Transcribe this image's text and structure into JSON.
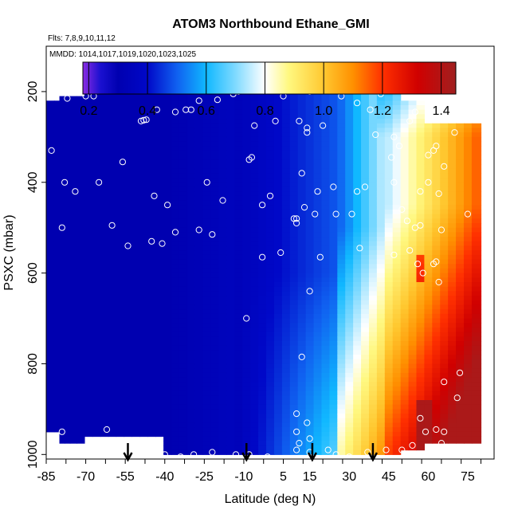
{
  "chart_data": {
    "type": "heatmap",
    "title": "ATOM3 Northbound Ethane_GMI",
    "flights_label": "Flts: 7,8,9,10,11,12",
    "dates_label": "MMDD: 1014,1017,1019,1020,1023,1025",
    "xlabel": "Latitude (deg N)",
    "ylabel": "PSXC (mbar)",
    "xlim": [
      -85,
      85
    ],
    "ylim": [
      1010,
      100
    ],
    "x_ticks": [
      -85,
      -70,
      -55,
      -40,
      -25,
      -10,
      5,
      15,
      30,
      45,
      60,
      75
    ],
    "x_tick_labels": [
      "-85",
      "-70",
      "-55",
      "-40",
      "-25",
      "-10",
      "5",
      "15",
      "30",
      "45",
      "60",
      "75"
    ],
    "y_ticks": [
      200,
      400,
      600,
      800,
      1000
    ],
    "y_tick_labels": [
      "200",
      "400",
      "600",
      "800",
      "1000"
    ],
    "colorbar": {
      "range": [
        0.18,
        1.45
      ],
      "ticks": [
        0.2,
        0.4,
        0.6,
        0.8,
        1.0,
        1.2,
        1.4
      ],
      "tick_labels": [
        "0.2",
        "0.4",
        "0.6",
        "0.8",
        "1.0",
        "1.2",
        "1.4"
      ],
      "stops": [
        {
          "v": 0.18,
          "color": "#8a2be2"
        },
        {
          "v": 0.24,
          "color": "#1a10d0"
        },
        {
          "v": 0.3,
          "color": "#0000b0"
        },
        {
          "v": 0.4,
          "color": "#0008c8"
        },
        {
          "v": 0.5,
          "color": "#1060f0"
        },
        {
          "v": 0.6,
          "color": "#10b8ff"
        },
        {
          "v": 0.7,
          "color": "#80daff"
        },
        {
          "v": 0.8,
          "color": "#ffffff"
        },
        {
          "v": 0.88,
          "color": "#fff880"
        },
        {
          "v": 1.0,
          "color": "#ffc830"
        },
        {
          "v": 1.1,
          "color": "#ff9000"
        },
        {
          "v": 1.2,
          "color": "#ff3000"
        },
        {
          "v": 1.32,
          "color": "#d00000"
        },
        {
          "v": 1.45,
          "color": "#a02020"
        }
      ]
    },
    "latitude_columns": [
      -83,
      -81,
      -79,
      -77,
      -75,
      -72,
      -69,
      -66,
      -63,
      -60,
      -57,
      -54,
      -51,
      -48,
      -45,
      -42,
      -39,
      -36,
      -33,
      -30,
      -27,
      -24,
      -21,
      -18,
      -15,
      -12,
      -9,
      -6,
      -3,
      0,
      3,
      6,
      9,
      12,
      15,
      18,
      21,
      24,
      27,
      30,
      33,
      36,
      39,
      42,
      45,
      48,
      51,
      54,
      57,
      60,
      63,
      66,
      69,
      72,
      75,
      78
    ],
    "column_ranges_mbar": [
      {
        "lat_min": -85,
        "lat_max": -83,
        "p_top": 330,
        "p_bottom": 330
      },
      {
        "lat_min": -83,
        "lat_max": -80,
        "p_top": 220,
        "p_bottom": 950
      },
      {
        "lat_min": -80,
        "lat_max": -70,
        "p_top": 210,
        "p_bottom": 975
      },
      {
        "lat_min": -70,
        "lat_max": -40,
        "p_top": 170,
        "p_bottom": 960
      },
      {
        "lat_min": -40,
        "lat_max": 50,
        "p_top": 170,
        "p_bottom": 1000
      },
      {
        "lat_min": 50,
        "lat_max": 58,
        "p_top": 220,
        "p_bottom": 990
      },
      {
        "lat_min": 58,
        "lat_max": 78,
        "p_top": 270,
        "p_bottom": 975
      }
    ],
    "arrows_latitude": [
      -54,
      -9,
      16,
      39
    ],
    "sample_points": [
      {
        "lat": -77,
        "p": 215
      },
      {
        "lat": -70,
        "p": 210
      },
      {
        "lat": -67,
        "p": 210
      },
      {
        "lat": -60,
        "p": 185
      },
      {
        "lat": -49,
        "p": 265
      },
      {
        "lat": -48,
        "p": 263
      },
      {
        "lat": -47,
        "p": 262
      },
      {
        "lat": -43,
        "p": 240
      },
      {
        "lat": -36,
        "p": 245
      },
      {
        "lat": -32,
        "p": 240
      },
      {
        "lat": -30,
        "p": 240
      },
      {
        "lat": -27,
        "p": 220
      },
      {
        "lat": -20,
        "p": 218
      },
      {
        "lat": -14,
        "p": 205
      },
      {
        "lat": -12,
        "p": 200
      },
      {
        "lat": -9,
        "p": 185
      },
      {
        "lat": 0,
        "p": 195
      },
      {
        "lat": 5,
        "p": 210
      },
      {
        "lat": 12,
        "p": 190
      },
      {
        "lat": 15,
        "p": 200
      },
      {
        "lat": 27,
        "p": 210
      },
      {
        "lat": 33,
        "p": 225
      },
      {
        "lat": 38,
        "p": 240
      },
      {
        "lat": 42,
        "p": 205
      },
      {
        "lat": 52,
        "p": 210
      },
      {
        "lat": -6,
        "p": 275
      },
      {
        "lat": 2,
        "p": 265
      },
      {
        "lat": 11,
        "p": 265
      },
      {
        "lat": 14,
        "p": 280
      },
      {
        "lat": 14,
        "p": 290
      },
      {
        "lat": 20,
        "p": 275
      },
      {
        "lat": 40,
        "p": 295
      },
      {
        "lat": 53,
        "p": 265
      },
      {
        "lat": 55,
        "p": 245
      },
      {
        "lat": 70,
        "p": 290
      },
      {
        "lat": -83,
        "p": 330
      },
      {
        "lat": -8,
        "p": 350
      },
      {
        "lat": -7,
        "p": 345
      },
      {
        "lat": 47,
        "p": 300
      },
      {
        "lat": 49,
        "p": 320
      },
      {
        "lat": 46,
        "p": 345
      },
      {
        "lat": 60,
        "p": 340
      },
      {
        "lat": 62,
        "p": 330
      },
      {
        "lat": 63,
        "p": 320
      },
      {
        "lat": 66,
        "p": 365
      },
      {
        "lat": -78,
        "p": 400
      },
      {
        "lat": -74,
        "p": 420
      },
      {
        "lat": -65,
        "p": 400
      },
      {
        "lat": -56,
        "p": 355
      },
      {
        "lat": -44,
        "p": 430
      },
      {
        "lat": -39,
        "p": 450
      },
      {
        "lat": -24,
        "p": 400
      },
      {
        "lat": -18,
        "p": 440
      },
      {
        "lat": 0,
        "p": 430
      },
      {
        "lat": 12,
        "p": 380
      },
      {
        "lat": 18,
        "p": 420
      },
      {
        "lat": 24,
        "p": 410
      },
      {
        "lat": 33,
        "p": 420
      },
      {
        "lat": 36,
        "p": 410
      },
      {
        "lat": 47,
        "p": 400
      },
      {
        "lat": 57,
        "p": 420
      },
      {
        "lat": 60,
        "p": 400
      },
      {
        "lat": 64,
        "p": 425
      },
      {
        "lat": -79,
        "p": 500
      },
      {
        "lat": -60,
        "p": 495
      },
      {
        "lat": -54,
        "p": 540
      },
      {
        "lat": -45,
        "p": 530
      },
      {
        "lat": -41,
        "p": 535
      },
      {
        "lat": -36,
        "p": 510
      },
      {
        "lat": -27,
        "p": 505
      },
      {
        "lat": -22,
        "p": 515
      },
      {
        "lat": -3,
        "p": 450
      },
      {
        "lat": 9,
        "p": 480
      },
      {
        "lat": 10,
        "p": 490
      },
      {
        "lat": 10,
        "p": 480
      },
      {
        "lat": 13,
        "p": 455
      },
      {
        "lat": 17,
        "p": 470
      },
      {
        "lat": 25,
        "p": 470
      },
      {
        "lat": 31,
        "p": 470
      },
      {
        "lat": 50,
        "p": 460
      },
      {
        "lat": 52,
        "p": 485
      },
      {
        "lat": 55,
        "p": 500
      },
      {
        "lat": 57,
        "p": 495
      },
      {
        "lat": 65,
        "p": 505
      },
      {
        "lat": 75,
        "p": 470
      },
      {
        "lat": -3,
        "p": 565
      },
      {
        "lat": 4,
        "p": 555
      },
      {
        "lat": 19,
        "p": 565
      },
      {
        "lat": 34,
        "p": 545
      },
      {
        "lat": 47,
        "p": 560
      },
      {
        "lat": 53,
        "p": 550
      },
      {
        "lat": 56,
        "p": 580
      },
      {
        "lat": 58,
        "p": 600
      },
      {
        "lat": 62,
        "p": 580
      },
      {
        "lat": 63,
        "p": 575
      },
      {
        "lat": 64,
        "p": 620
      },
      {
        "lat": 15,
        "p": 640
      },
      {
        "lat": -9,
        "p": 700
      },
      {
        "lat": 12,
        "p": 785
      },
      {
        "lat": 72,
        "p": 820
      },
      {
        "lat": 66,
        "p": 840
      },
      {
        "lat": 71,
        "p": 875
      },
      {
        "lat": -79,
        "p": 950
      },
      {
        "lat": -62,
        "p": 945
      },
      {
        "lat": 10,
        "p": 910
      },
      {
        "lat": 10,
        "p": 950
      },
      {
        "lat": 10,
        "p": 990
      },
      {
        "lat": 11,
        "p": 975
      },
      {
        "lat": 14,
        "p": 930
      },
      {
        "lat": 15,
        "p": 965
      },
      {
        "lat": 15,
        "p": 995
      },
      {
        "lat": 22,
        "p": 990
      },
      {
        "lat": 25,
        "p": 1000
      },
      {
        "lat": 30,
        "p": 1005
      },
      {
        "lat": 37,
        "p": 995
      },
      {
        "lat": 44,
        "p": 990
      },
      {
        "lat": 50,
        "p": 990
      },
      {
        "lat": 54,
        "p": 980
      },
      {
        "lat": 57,
        "p": 920
      },
      {
        "lat": 59,
        "p": 950
      },
      {
        "lat": 63,
        "p": 945
      },
      {
        "lat": 65,
        "p": 975
      },
      {
        "lat": 66,
        "p": 950
      },
      {
        "lat": 70,
        "p": 990
      },
      {
        "lat": -40,
        "p": 1000
      },
      {
        "lat": -34,
        "p": 1005
      },
      {
        "lat": -29,
        "p": 1000
      },
      {
        "lat": -22,
        "p": 995
      },
      {
        "lat": -13,
        "p": 1000
      },
      {
        "lat": -8,
        "p": 1000
      },
      {
        "lat": -1,
        "p": 1005
      }
    ]
  }
}
